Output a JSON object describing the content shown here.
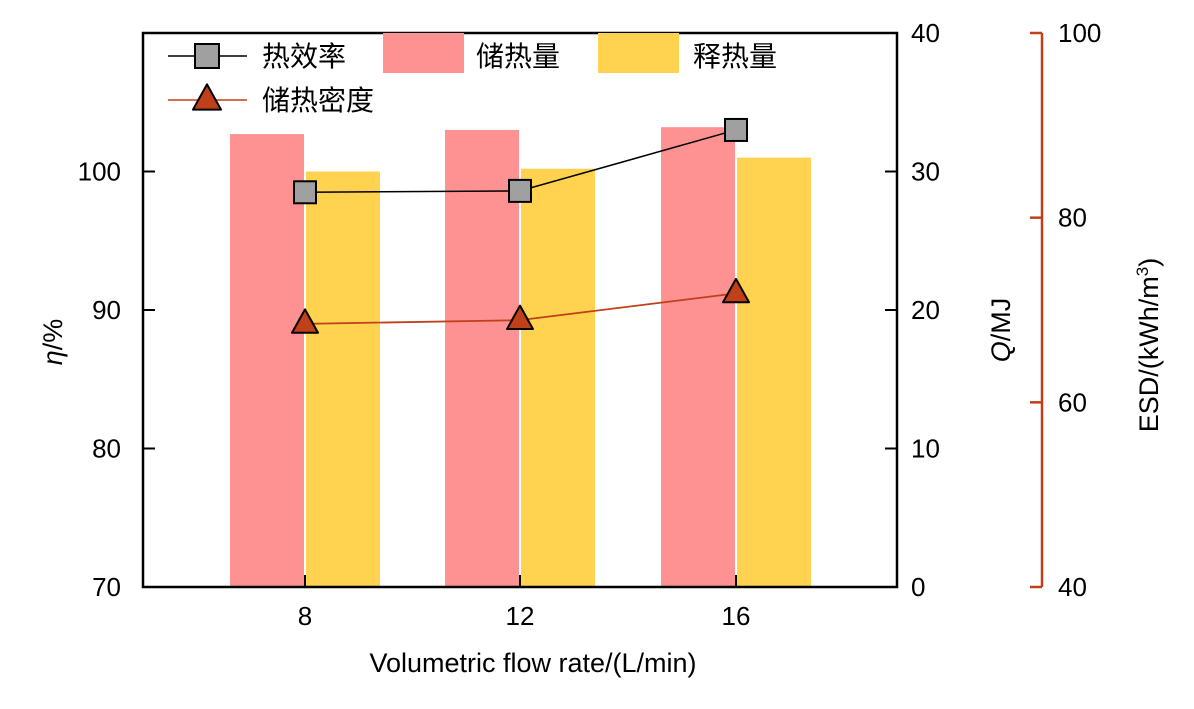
{
  "chart_data": {
    "type": "bar",
    "categories": [
      "8",
      "12",
      "16"
    ],
    "xlabel": "Volumetric flow rate/(L/min)",
    "axes": {
      "left": {
        "label_symbol": "η",
        "label_unit": "/%",
        "ylim": [
          70,
          110
        ],
        "ticks": [
          "70",
          "80",
          "90",
          "100"
        ]
      },
      "right": {
        "label_symbol": "Q",
        "label_unit": "/MJ",
        "ylim": [
          0,
          40
        ],
        "ticks": [
          "0",
          "10",
          "20",
          "30",
          "40"
        ]
      },
      "right2": {
        "label_text": "ESD/(kWh/m",
        "label_sup": "3",
        "label_close": ")",
        "ylim": [
          40,
          100
        ],
        "ticks": [
          "40",
          "60",
          "80",
          "100"
        ]
      }
    },
    "series": [
      {
        "name": "储热量",
        "kind": "bar",
        "axis": "right",
        "color": "#fe9191",
        "values": [
          32.7,
          33.0,
          33.2
        ]
      },
      {
        "name": "释热量",
        "kind": "bar",
        "axis": "right",
        "color": "#ffd24f",
        "values": [
          30.0,
          30.2,
          31.0
        ]
      },
      {
        "name": "热效率",
        "kind": "line",
        "axis": "left",
        "color": "#000000",
        "marker": "square",
        "marker_color": "#a0a0a0",
        "values": [
          98.5,
          98.6,
          103.0
        ]
      },
      {
        "name": "储热密度",
        "kind": "line",
        "axis": "right2",
        "color": "#c0401a",
        "marker": "triangle",
        "marker_color": "#c0401a",
        "values": [
          68.5,
          68.9,
          71.8
        ]
      }
    ],
    "legend_order": [
      "热效率",
      "储热量",
      "释热量",
      "储热密度"
    ],
    "legend_position": "top-left"
  }
}
